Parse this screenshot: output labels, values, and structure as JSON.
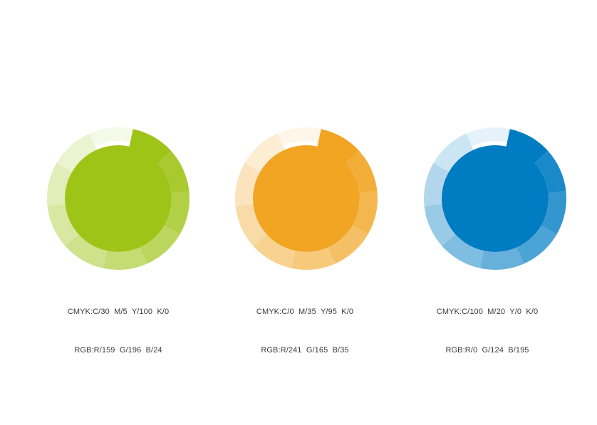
{
  "page": {
    "background": "#ffffff",
    "text_color": "#3a3a3a"
  },
  "ring": {
    "segment_count": 10,
    "opacity_step": 0.1,
    "notch_angle_deg": 12
  },
  "swatches": [
    {
      "name": "green",
      "hex": "#9FC418",
      "cmyk_label": "CMYK:C/30  M/5  Y/100  K/0",
      "rgb_label": "RGB:R/159  G/196  B/24"
    },
    {
      "name": "orange",
      "hex": "#F1A523",
      "cmyk_label": "CMYK:C/0  M/35  Y/95  K/0",
      "rgb_label": "RGB:R/241  G/165  B/35"
    },
    {
      "name": "blue",
      "hex": "#007CC3",
      "cmyk_label": "CMYK:C/100  M/20  Y/0  K/0",
      "rgb_label": "RGB:R/0  G/124  B/195"
    }
  ]
}
